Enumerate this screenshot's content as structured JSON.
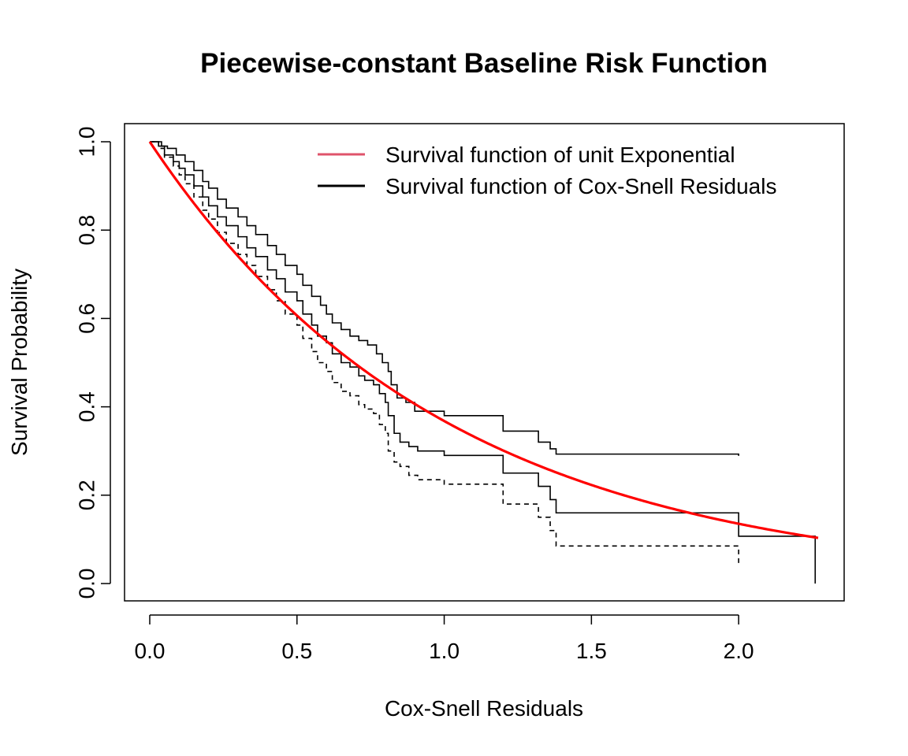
{
  "chart_data": {
    "type": "line",
    "title": "Piecewise-constant Baseline Risk Function",
    "xlabel": "Cox-Snell Residuals",
    "ylabel": "Survival Probability",
    "xlim": [
      0.0,
      2.27
    ],
    "ylim": [
      0.0,
      1.0
    ],
    "xticks": [
      "0.0",
      "0.5",
      "1.0",
      "1.5",
      "2.0"
    ],
    "yticks": [
      "0.0",
      "0.2",
      "0.4",
      "0.6",
      "0.8",
      "1.0"
    ],
    "grid": false,
    "legend_position": "top-right",
    "legend": [
      {
        "label": "Survival function of unit Exponential",
        "color": "#DF536B"
      },
      {
        "label": "Survival function of Cox-Snell Residuals",
        "color": "#000000"
      }
    ],
    "series": [
      {
        "name": "Survival function of unit Exponential",
        "color": "#FF0000",
        "style": "solid",
        "function": "exp(-x)",
        "x_range": [
          0.0,
          2.27
        ]
      },
      {
        "name": "Survival function of Cox-Snell Residuals",
        "color": "#000000",
        "style": "step",
        "points": [
          [
            0.0,
            1.0
          ],
          [
            0.03,
            0.99
          ],
          [
            0.05,
            0.97
          ],
          [
            0.08,
            0.955
          ],
          [
            0.1,
            0.94
          ],
          [
            0.12,
            0.925
          ],
          [
            0.15,
            0.9
          ],
          [
            0.18,
            0.875
          ],
          [
            0.2,
            0.855
          ],
          [
            0.23,
            0.83
          ],
          [
            0.26,
            0.81
          ],
          [
            0.3,
            0.785
          ],
          [
            0.33,
            0.76
          ],
          [
            0.36,
            0.74
          ],
          [
            0.4,
            0.71
          ],
          [
            0.43,
            0.69
          ],
          [
            0.46,
            0.66
          ],
          [
            0.5,
            0.64
          ],
          [
            0.52,
            0.61
          ],
          [
            0.55,
            0.585
          ],
          [
            0.57,
            0.56
          ],
          [
            0.6,
            0.545
          ],
          [
            0.62,
            0.52
          ],
          [
            0.65,
            0.5
          ],
          [
            0.68,
            0.49
          ],
          [
            0.71,
            0.47
          ],
          [
            0.73,
            0.46
          ],
          [
            0.76,
            0.45
          ],
          [
            0.78,
            0.43
          ],
          [
            0.8,
            0.41
          ],
          [
            0.81,
            0.38
          ],
          [
            0.83,
            0.34
          ],
          [
            0.85,
            0.32
          ],
          [
            0.88,
            0.31
          ],
          [
            0.91,
            0.3
          ],
          [
            1.0,
            0.29
          ],
          [
            1.2,
            0.25
          ],
          [
            1.32,
            0.22
          ],
          [
            1.36,
            0.19
          ],
          [
            1.38,
            0.16
          ],
          [
            2.0,
            0.107
          ],
          [
            2.26,
            0.107
          ],
          [
            2.26,
            0.0
          ]
        ]
      },
      {
        "name": "upper bound",
        "color": "#000000",
        "style": "step",
        "points": [
          [
            0.0,
            1.0
          ],
          [
            0.04,
            0.99
          ],
          [
            0.06,
            0.985
          ],
          [
            0.09,
            0.97
          ],
          [
            0.12,
            0.955
          ],
          [
            0.15,
            0.935
          ],
          [
            0.18,
            0.91
          ],
          [
            0.2,
            0.895
          ],
          [
            0.23,
            0.87
          ],
          [
            0.26,
            0.85
          ],
          [
            0.3,
            0.83
          ],
          [
            0.33,
            0.81
          ],
          [
            0.36,
            0.79
          ],
          [
            0.4,
            0.765
          ],
          [
            0.43,
            0.745
          ],
          [
            0.46,
            0.72
          ],
          [
            0.5,
            0.7
          ],
          [
            0.52,
            0.675
          ],
          [
            0.55,
            0.65
          ],
          [
            0.58,
            0.63
          ],
          [
            0.6,
            0.61
          ],
          [
            0.62,
            0.59
          ],
          [
            0.65,
            0.575
          ],
          [
            0.68,
            0.56
          ],
          [
            0.71,
            0.55
          ],
          [
            0.74,
            0.54
          ],
          [
            0.77,
            0.52
          ],
          [
            0.79,
            0.5
          ],
          [
            0.81,
            0.48
          ],
          [
            0.82,
            0.45
          ],
          [
            0.84,
            0.42
          ],
          [
            0.87,
            0.41
          ],
          [
            0.9,
            0.39
          ],
          [
            1.0,
            0.38
          ],
          [
            1.2,
            0.345
          ],
          [
            1.32,
            0.32
          ],
          [
            1.36,
            0.305
          ],
          [
            1.38,
            0.293
          ],
          [
            2.0,
            0.289
          ]
        ]
      },
      {
        "name": "lower bound",
        "color": "#000000",
        "style": "dashed-step",
        "points": [
          [
            0.0,
            1.0
          ],
          [
            0.03,
            0.985
          ],
          [
            0.05,
            0.965
          ],
          [
            0.08,
            0.945
          ],
          [
            0.1,
            0.925
          ],
          [
            0.12,
            0.905
          ],
          [
            0.15,
            0.875
          ],
          [
            0.18,
            0.845
          ],
          [
            0.2,
            0.825
          ],
          [
            0.23,
            0.795
          ],
          [
            0.26,
            0.77
          ],
          [
            0.3,
            0.745
          ],
          [
            0.33,
            0.72
          ],
          [
            0.36,
            0.695
          ],
          [
            0.4,
            0.665
          ],
          [
            0.43,
            0.64
          ],
          [
            0.46,
            0.61
          ],
          [
            0.5,
            0.585
          ],
          [
            0.52,
            0.555
          ],
          [
            0.55,
            0.525
          ],
          [
            0.57,
            0.5
          ],
          [
            0.6,
            0.48
          ],
          [
            0.62,
            0.455
          ],
          [
            0.65,
            0.435
          ],
          [
            0.68,
            0.425
          ],
          [
            0.71,
            0.405
          ],
          [
            0.73,
            0.395
          ],
          [
            0.76,
            0.385
          ],
          [
            0.78,
            0.36
          ],
          [
            0.8,
            0.34
          ],
          [
            0.81,
            0.3
          ],
          [
            0.83,
            0.275
          ],
          [
            0.85,
            0.265
          ],
          [
            0.88,
            0.245
          ],
          [
            0.91,
            0.235
          ],
          [
            1.0,
            0.225
          ],
          [
            1.2,
            0.18
          ],
          [
            1.32,
            0.15
          ],
          [
            1.36,
            0.12
          ],
          [
            1.38,
            0.085
          ],
          [
            2.0,
            0.04
          ]
        ]
      }
    ]
  }
}
